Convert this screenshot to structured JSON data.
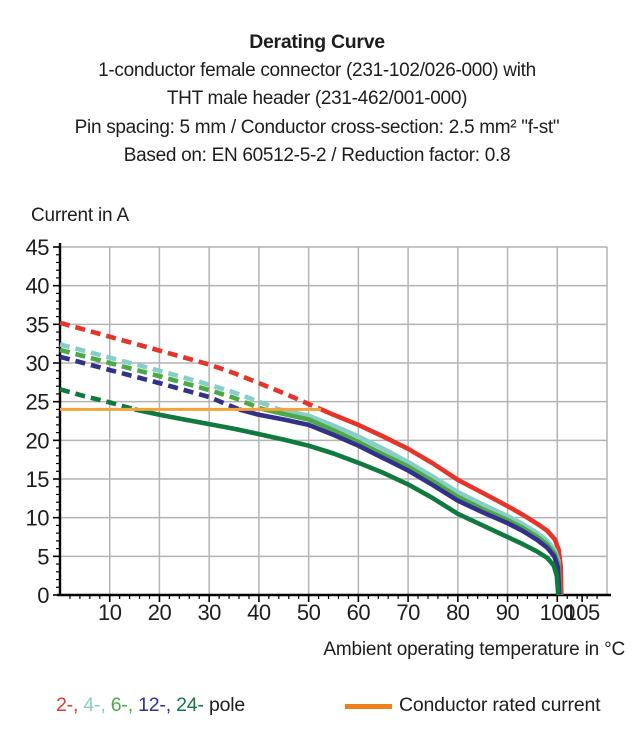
{
  "header": {
    "title": "Derating Curve",
    "subtitle_lines": [
      "1-conductor female connector (231-102/026-000) with",
      "THT male header (231-462/001-000)",
      "Pin spacing: 5 mm / Conductor cross-section: 2.5 mm² \"f-st\"",
      "Based on: EN 60512-5-2 / Reduction factor: 0.8"
    ]
  },
  "chart_data": {
    "type": "line",
    "ylabel": "Current in A",
    "xlabel": "Ambient operating temperature in °C",
    "xlim": [
      0,
      110
    ],
    "ylim": [
      0,
      45
    ],
    "xticks": [
      10,
      20,
      30,
      40,
      50,
      60,
      70,
      80,
      90,
      100,
      105
    ],
    "yticks": [
      0,
      5,
      10,
      15,
      20,
      25,
      30,
      35,
      40,
      45
    ],
    "x_minor_step": 2,
    "y_minor_step": 1,
    "grid": {
      "x_step": 10,
      "y_step": 5,
      "color": "#b3b3b3"
    },
    "axis_color": "#000000",
    "legend_position": "bottom",
    "note": "dashed = derating curve above conductor rated current, solid = below; all curves drop to 0 A at ~100 °C",
    "series": [
      {
        "name": "2-pole",
        "color": "#e5352b",
        "dashed": [
          [
            0,
            35.2
          ],
          [
            10,
            33.4
          ],
          [
            20,
            31.6
          ],
          [
            30,
            29.8
          ],
          [
            35,
            28.7
          ],
          [
            40,
            27.4
          ],
          [
            45,
            26.1
          ],
          [
            50,
            24.7
          ],
          [
            52.5,
            24
          ]
        ],
        "solid": [
          [
            52.5,
            24
          ],
          [
            55,
            23.3
          ],
          [
            60,
            22.0
          ],
          [
            65,
            20.5
          ],
          [
            70,
            18.9
          ],
          [
            75,
            17.0
          ],
          [
            80,
            14.9
          ],
          [
            85,
            13.2
          ],
          [
            90,
            11.5
          ],
          [
            93,
            10.4
          ],
          [
            96,
            9.2
          ],
          [
            98,
            8.3
          ],
          [
            99.5,
            7.2
          ],
          [
            100.3,
            5.8
          ],
          [
            100.7,
            3.5
          ],
          [
            100.8,
            0
          ]
        ]
      },
      {
        "name": "4-pole",
        "color": "#87cec9",
        "dashed": [
          [
            0,
            32.4
          ],
          [
            10,
            30.7
          ],
          [
            20,
            29.0
          ],
          [
            30,
            27.2
          ],
          [
            35,
            26.2
          ],
          [
            40,
            25.0
          ],
          [
            44,
            24
          ]
        ],
        "solid": [
          [
            44,
            24
          ],
          [
            50,
            23.2
          ],
          [
            55,
            21.9
          ],
          [
            60,
            20.5
          ],
          [
            65,
            18.9
          ],
          [
            70,
            17.2
          ],
          [
            75,
            15.3
          ],
          [
            80,
            13.3
          ],
          [
            85,
            11.7
          ],
          [
            90,
            10.2
          ],
          [
            93,
            9.2
          ],
          [
            96,
            8.0
          ],
          [
            98,
            7.0
          ],
          [
            99.5,
            5.8
          ],
          [
            100.2,
            4.5
          ],
          [
            100.5,
            0
          ]
        ]
      },
      {
        "name": "6-pole",
        "color": "#4caa46",
        "dashed": [
          [
            0,
            31.7
          ],
          [
            10,
            30.0
          ],
          [
            20,
            28.3
          ],
          [
            30,
            26.5
          ],
          [
            35,
            25.5
          ],
          [
            40,
            24.2
          ],
          [
            41,
            24
          ]
        ],
        "solid": [
          [
            41,
            24
          ],
          [
            45,
            23.4
          ],
          [
            50,
            22.7
          ],
          [
            55,
            21.3
          ],
          [
            60,
            19.8
          ],
          [
            65,
            18.2
          ],
          [
            70,
            16.6
          ],
          [
            75,
            14.7
          ],
          [
            80,
            12.7
          ],
          [
            85,
            11.1
          ],
          [
            90,
            9.7
          ],
          [
            93,
            8.7
          ],
          [
            96,
            7.5
          ],
          [
            98,
            6.5
          ],
          [
            99.5,
            5.3
          ],
          [
            100.2,
            4.0
          ],
          [
            100.5,
            0
          ]
        ]
      },
      {
        "name": "12-pole",
        "color": "#33308b",
        "dashed": [
          [
            0,
            30.8
          ],
          [
            10,
            29.1
          ],
          [
            20,
            27.4
          ],
          [
            30,
            25.6
          ],
          [
            36,
            24
          ]
        ],
        "solid": [
          [
            36,
            24
          ],
          [
            40,
            23.3
          ],
          [
            45,
            22.7
          ],
          [
            50,
            22.0
          ],
          [
            55,
            20.7
          ],
          [
            60,
            19.3
          ],
          [
            65,
            17.7
          ],
          [
            70,
            16.1
          ],
          [
            75,
            14.2
          ],
          [
            80,
            12.2
          ],
          [
            85,
            10.7
          ],
          [
            90,
            9.3
          ],
          [
            93,
            8.3
          ],
          [
            96,
            7.1
          ],
          [
            98,
            6.1
          ],
          [
            99.4,
            5.0
          ],
          [
            100.1,
            3.6
          ],
          [
            100.4,
            0
          ]
        ]
      },
      {
        "name": "24-pole",
        "color": "#107a3e",
        "dashed": [
          [
            0,
            26.6
          ],
          [
            5,
            25.7
          ],
          [
            10,
            24.9
          ],
          [
            15,
            24
          ]
        ],
        "solid": [
          [
            15,
            24
          ],
          [
            20,
            23.3
          ],
          [
            25,
            22.7
          ],
          [
            30,
            22.1
          ],
          [
            35,
            21.5
          ],
          [
            40,
            20.8
          ],
          [
            45,
            20.1
          ],
          [
            50,
            19.3
          ],
          [
            55,
            18.3
          ],
          [
            60,
            17.1
          ],
          [
            65,
            15.8
          ],
          [
            70,
            14.3
          ],
          [
            75,
            12.5
          ],
          [
            80,
            10.5
          ],
          [
            85,
            9.0
          ],
          [
            90,
            7.5
          ],
          [
            93,
            6.6
          ],
          [
            96,
            5.6
          ],
          [
            98,
            4.8
          ],
          [
            99.3,
            3.8
          ],
          [
            99.9,
            2.5
          ],
          [
            100.2,
            0
          ]
        ]
      }
    ],
    "rated_current_line": {
      "label": "Conductor rated current",
      "color": "#f2a33c",
      "value_a": 24,
      "x_from": 0,
      "x_to": 52.5
    }
  },
  "legend": {
    "pole_parts": [
      {
        "text": "2-, ",
        "color": "#e5352b"
      },
      {
        "text": "4-, ",
        "color": "#87cec9"
      },
      {
        "text": "6-, ",
        "color": "#4caa46"
      },
      {
        "text": "12-, ",
        "color": "#33308b"
      },
      {
        "text": "24- ",
        "color": "#107a3e"
      },
      {
        "text": "pole",
        "color": "#1d1d1b"
      }
    ],
    "rated": {
      "label": "Conductor rated current",
      "color": "#ee7f1a"
    }
  },
  "colors": {
    "text": "#1d1d1b",
    "background": "#ffffff",
    "grid": "#b3b3b3"
  }
}
